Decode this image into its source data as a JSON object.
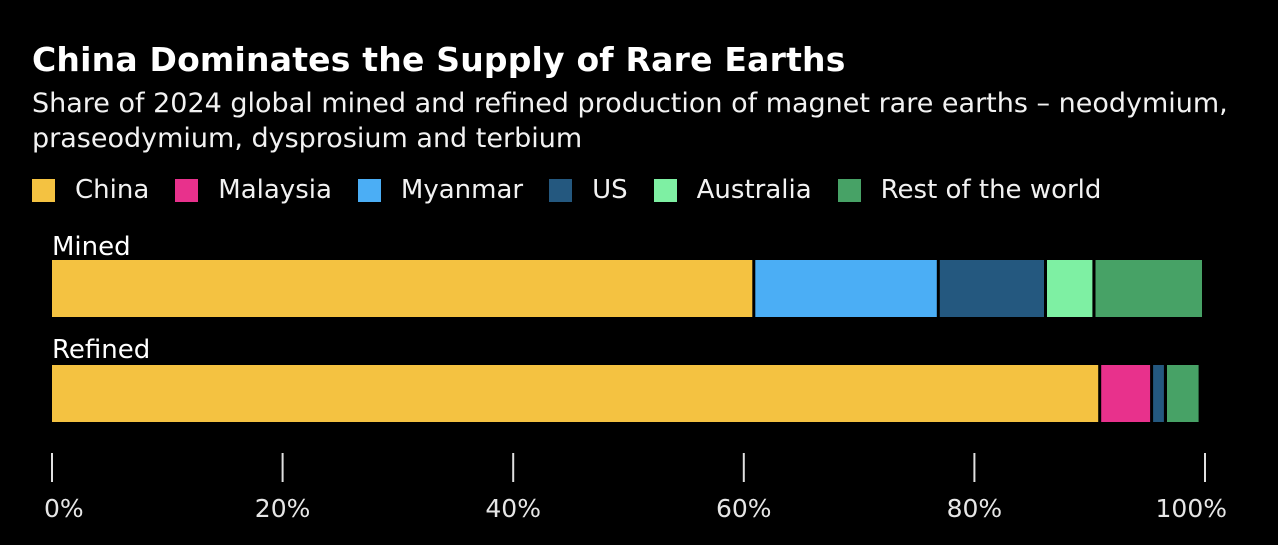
{
  "chart_data": {
    "type": "bar",
    "orientation": "horizontal",
    "stacked": true,
    "title": "China Dominates the Supply of Rare Earths",
    "subtitle": "Share of 2024 global mined and refined production of magnet rare earths – neodymium, praseodymium, dysprosium and terbium",
    "categories": [
      "Mined",
      "Refined"
    ],
    "series": [
      {
        "name": "China",
        "color": "#F4C241",
        "values": [
          61,
          91
        ]
      },
      {
        "name": "Malaysia",
        "color": "#E8318C",
        "values": [
          0,
          4.5
        ]
      },
      {
        "name": "Myanmar",
        "color": "#4BAEF5",
        "values": [
          16,
          0
        ]
      },
      {
        "name": "US",
        "color": "#24587F",
        "values": [
          9.3,
          1.2
        ]
      },
      {
        "name": "Australia",
        "color": "#7EF0A3",
        "values": [
          4.2,
          0
        ]
      },
      {
        "name": "Rest of the world",
        "color": "#47A266",
        "values": [
          9.5,
          3
        ]
      }
    ],
    "xlim": [
      0,
      100
    ],
    "ticks": [
      "0%",
      "20%",
      "40%",
      "60%",
      "80%",
      "100%"
    ],
    "tick_values": [
      0,
      20,
      40,
      60,
      80,
      100
    ],
    "xlabel": "",
    "ylabel": "",
    "grid": false,
    "legend_position": "top-left"
  }
}
